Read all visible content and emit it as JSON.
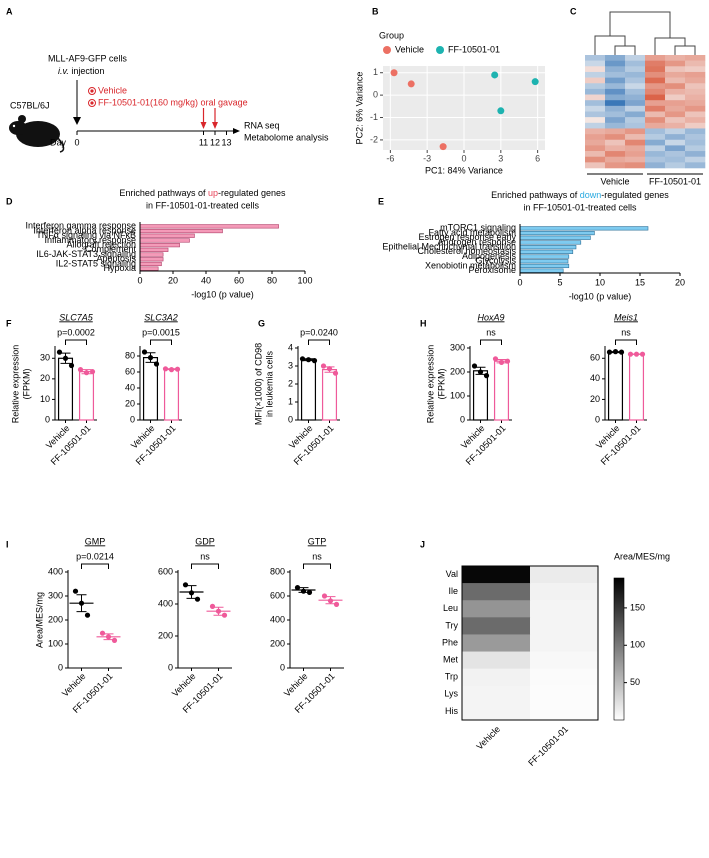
{
  "panel_labels": [
    "A",
    "B",
    "C",
    "D",
    "E",
    "F",
    "G",
    "H",
    "I",
    "J"
  ],
  "timeline": {
    "cells": "MLL-AF9-GFP cells",
    "injection": [
      "i.v.",
      " injection"
    ],
    "treatments": [
      "Vehicle",
      "FF-10501-01(160 mg/kg) oral gavage"
    ],
    "mouse": "C57BL/6J",
    "day_label": "Day",
    "days": [
      0,
      11,
      12,
      13
    ],
    "outputs": [
      "RNA seq",
      "Metabolome analysis"
    ]
  },
  "chart_data": [
    {
      "type": "scatter",
      "xlabel": "PC1: 84% Variance",
      "ylabel": "PC2: 6% Variance",
      "legend_title": "Group",
      "grid": true,
      "xlim": [
        -6.6,
        6.6
      ],
      "xticks": [
        -6,
        -3,
        0,
        3,
        6
      ],
      "ylim": [
        -2.45,
        1.3
      ],
      "yticks": [
        -2,
        -1,
        0,
        1
      ],
      "series": [
        {
          "name": "Vehicle",
          "color": "#ec7063",
          "x": [
            -5.7,
            -4.3,
            -1.7
          ],
          "values": [
            1.0,
            0.5,
            -2.3
          ]
        },
        {
          "name": "FF-10501-01",
          "color": "#1db3b0",
          "x": [
            2.5,
            5.8,
            3.0
          ],
          "values": [
            0.9,
            0.6,
            -0.7
          ]
        }
      ]
    },
    {
      "type": "heatmap",
      "groups": [
        "Vehicle",
        "FF-10501-01"
      ],
      "colors": [
        "#3b78b8",
        "#f7f7f7",
        "#d6492a"
      ],
      "clim": [
        -2,
        2
      ],
      "values": [
        [
          -0.8,
          -1.2,
          -0.6,
          1.0,
          0.8,
          0.9
        ],
        [
          -0.5,
          -1.5,
          -0.9,
          1.4,
          1.1,
          0.7
        ],
        [
          0.3,
          -1.1,
          -0.7,
          1.5,
          0.6,
          0.5
        ],
        [
          -0.6,
          -0.9,
          -1.0,
          1.2,
          0.9,
          1.0
        ],
        [
          0.5,
          -1.4,
          -0.8,
          1.6,
          0.7,
          0.9
        ],
        [
          -0.7,
          -1.0,
          -0.5,
          1.1,
          1.2,
          0.6
        ],
        [
          -1.0,
          -1.6,
          -0.9,
          1.3,
          0.8,
          0.7
        ],
        [
          0.4,
          -1.2,
          -1.1,
          1.7,
          0.5,
          0.8
        ],
        [
          -0.9,
          -2.0,
          -1.3,
          1.0,
          1.0,
          0.9
        ],
        [
          -0.5,
          -1.1,
          -0.6,
          1.4,
          0.9,
          1.1
        ],
        [
          -0.8,
          -0.9,
          -1.2,
          0.7,
          1.1,
          0.6
        ],
        [
          0.2,
          -1.3,
          -0.7,
          1.2,
          0.6,
          0.8
        ],
        [
          -0.6,
          -1.0,
          -0.8,
          0.9,
          0.8,
          0.5
        ],
        [
          0.8,
          0.9,
          1.1,
          -0.9,
          -0.6,
          -1.0
        ],
        [
          1.0,
          1.2,
          0.7,
          -0.7,
          -1.1,
          -0.8
        ],
        [
          0.9,
          0.6,
          1.3,
          -1.2,
          -0.5,
          -0.9
        ],
        [
          1.1,
          0.8,
          0.9,
          -0.6,
          -1.3,
          -0.7
        ],
        [
          0.7,
          1.3,
          1.0,
          -1.0,
          -0.8,
          -1.1
        ],
        [
          1.2,
          0.9,
          0.8,
          -0.8,
          -0.9,
          -0.6
        ],
        [
          0.6,
          1.1,
          1.2,
          -1.1,
          -0.7,
          -1.0
        ]
      ]
    },
    {
      "type": "barh",
      "title": [
        "Enriched pathways of ",
        "up",
        "-regulated genes"
      ],
      "title_colors": [
        "#000000",
        "#e8445a",
        "#000000"
      ],
      "subtitle": "in FF-10501-01-treated cells",
      "xlabel": "-log10 (p value)",
      "color": "#f49ab8",
      "stroke": "#b0406a",
      "categories": [
        "Interferon gamma response",
        "Interferon alpha response",
        "TNFα signaling via NFκB",
        "Inflammatory response",
        "Allograft rejection",
        "Complement",
        "IL6-JAK-STAT3 signaling",
        "Apoptosis",
        "IL2-STAT5 signaling",
        "Hypoxia"
      ],
      "values": [
        84,
        50,
        33,
        30,
        24,
        17,
        14,
        14,
        13,
        11
      ],
      "xlim": [
        0,
        100
      ],
      "xticks": [
        0,
        20,
        40,
        60,
        80,
        100
      ]
    },
    {
      "type": "barh",
      "title": [
        "Enriched pathways of ",
        "down",
        "-regulated genes"
      ],
      "title_colors": [
        "#000000",
        "#29a9e0",
        "#000000"
      ],
      "subtitle": "in FF-10501-01-treated cells",
      "xlabel": "-log10 (p value)",
      "color": "#7ecbf0",
      "stroke": "#2f6f96",
      "categories": [
        "mTORC1 signaling",
        "Fatty acid metabolism",
        "Estrogen response early",
        "Androgen response",
        "Epithelial Mechnchymal transition",
        "Cholesterol homeostasis",
        "Adipogenesis",
        "Glycolysis",
        "Xenobiotin metabolism",
        "Peroxisome"
      ],
      "values": [
        16,
        9.3,
        8.8,
        7.6,
        7.0,
        6.6,
        6.1,
        6.0,
        6.1,
        5.4
      ],
      "xlim": [
        0,
        20
      ],
      "xticks": [
        0,
        5,
        10,
        15,
        20
      ]
    },
    {
      "type": "bar",
      "title": "SLC7A5",
      "annotation": "p=0.0002",
      "ylabel": [
        "Relative expression",
        "(FPKM)"
      ],
      "categories": [
        "Vehicle",
        "FF-10501-01"
      ],
      "colors": [
        "#000000",
        "#ef5a9a"
      ],
      "values": [
        30,
        23.5
      ],
      "errors": [
        2.5,
        1
      ],
      "points": [
        [
          33,
          30,
          26.5
        ],
        [
          24.5,
          23,
          23.5
        ]
      ],
      "ylim": [
        0,
        35
      ],
      "yticks": [
        0,
        10,
        20,
        30
      ]
    },
    {
      "type": "bar",
      "title": "SLC3A2",
      "annotation": "p=0.0015",
      "categories": [
        "Vehicle",
        "FF-10501-01"
      ],
      "colors": [
        "#000000",
        "#ef5a9a"
      ],
      "values": [
        78,
        63.5
      ],
      "errors": [
        6,
        0.5
      ],
      "points": [
        [
          85,
          78,
          70
        ],
        [
          64,
          63,
          63.5
        ]
      ],
      "ylim": [
        0,
        90
      ],
      "yticks": [
        0,
        20,
        40,
        60,
        80
      ]
    },
    {
      "type": "bar",
      "annotation": "p=0.0240",
      "ylabel": [
        "MFI(×1000) of CD98",
        "in leukemia cells"
      ],
      "categories": [
        "Vehicle",
        "FF-10501-01"
      ],
      "colors": [
        "#000000",
        "#ef5a9a"
      ],
      "values": [
        3.35,
        2.8
      ],
      "errors": [
        0.05,
        0.15
      ],
      "points": [
        [
          3.4,
          3.35,
          3.3
        ],
        [
          3.0,
          2.85,
          2.6
        ]
      ],
      "ylim": [
        0,
        4
      ],
      "yticks": [
        0,
        1,
        2,
        3,
        4
      ]
    },
    {
      "type": "bar",
      "title": "HoxA9",
      "annotation": "ns",
      "ylabel": [
        "Relative expression",
        "(FPKM)"
      ],
      "categories": [
        "Vehicle",
        "FF-10501-01"
      ],
      "colors": [
        "#000000",
        "#ef5a9a"
      ],
      "values": [
        205,
        245
      ],
      "errors": [
        15,
        7
      ],
      "points": [
        [
          225,
          200,
          185
        ],
        [
          255,
          240,
          245
        ]
      ],
      "ylim": [
        0,
        300
      ],
      "yticks": [
        0,
        100,
        200,
        300
      ]
    },
    {
      "type": "bar",
      "title": "Meis1",
      "annotation": "ns",
      "categories": [
        "Vehicle",
        "FF-10501-01"
      ],
      "colors": [
        "#000000",
        "#ef5a9a"
      ],
      "values": [
        66,
        64
      ],
      "errors": [
        0.5,
        0.2
      ],
      "points": [
        [
          66,
          66.5,
          66
        ],
        [
          64,
          64,
          64
        ]
      ],
      "ylim": [
        0,
        70
      ],
      "yticks": [
        0,
        20,
        40,
        60
      ]
    },
    {
      "type": "dot",
      "title": "GMP",
      "annotation": "p=0.0214",
      "ylabel": [
        "Area/MES/mg"
      ],
      "categories": [
        "Vehicle",
        "FF-10501-01"
      ],
      "colors": [
        "#000000",
        "#ef5a9a"
      ],
      "values": [
        270,
        130
      ],
      "errors": [
        35,
        12
      ],
      "points": [
        [
          320,
          270,
          220
        ],
        [
          145,
          130,
          115
        ]
      ],
      "ylim": [
        0,
        400
      ],
      "yticks": [
        0,
        100,
        200,
        300,
        400
      ]
    },
    {
      "type": "dot",
      "title": "GDP",
      "annotation": "ns",
      "categories": [
        "Vehicle",
        "FF-10501-01"
      ],
      "colors": [
        "#000000",
        "#ef5a9a"
      ],
      "values": [
        475,
        355
      ],
      "errors": [
        40,
        25
      ],
      "points": [
        [
          520,
          470,
          430
        ],
        [
          385,
          355,
          330
        ]
      ],
      "ylim": [
        0,
        600
      ],
      "yticks": [
        0,
        200,
        400,
        600
      ]
    },
    {
      "type": "dot",
      "title": "GTP",
      "annotation": "ns",
      "categories": [
        "Vehicle",
        "FF-10501-01"
      ],
      "colors": [
        "#000000",
        "#ef5a9a"
      ],
      "values": [
        650,
        565
      ],
      "errors": [
        20,
        30
      ],
      "points": [
        [
          670,
          640,
          630
        ],
        [
          600,
          560,
          530
        ]
      ],
      "ylim": [
        0,
        800
      ],
      "yticks": [
        0,
        200,
        400,
        600,
        800
      ]
    },
    {
      "type": "heatmap",
      "rows": [
        "Val",
        "Ile",
        "Leu",
        "Try",
        "Phe",
        "Met",
        "Trp",
        "Lys",
        "His"
      ],
      "columns": [
        "Vehicle",
        "FF-10501-01"
      ],
      "values": [
        [
          185,
          15
        ],
        [
          110,
          10
        ],
        [
          80,
          8
        ],
        [
          110,
          8
        ],
        [
          75,
          8
        ],
        [
          20,
          5
        ],
        [
          10,
          3
        ],
        [
          8,
          2
        ],
        [
          8,
          2
        ]
      ],
      "colors": [
        "#ffffff",
        "#000000"
      ],
      "clim": [
        0,
        190
      ],
      "cticks": [
        50,
        100,
        150
      ],
      "colorbar_label": "Area/MES/mg"
    }
  ]
}
